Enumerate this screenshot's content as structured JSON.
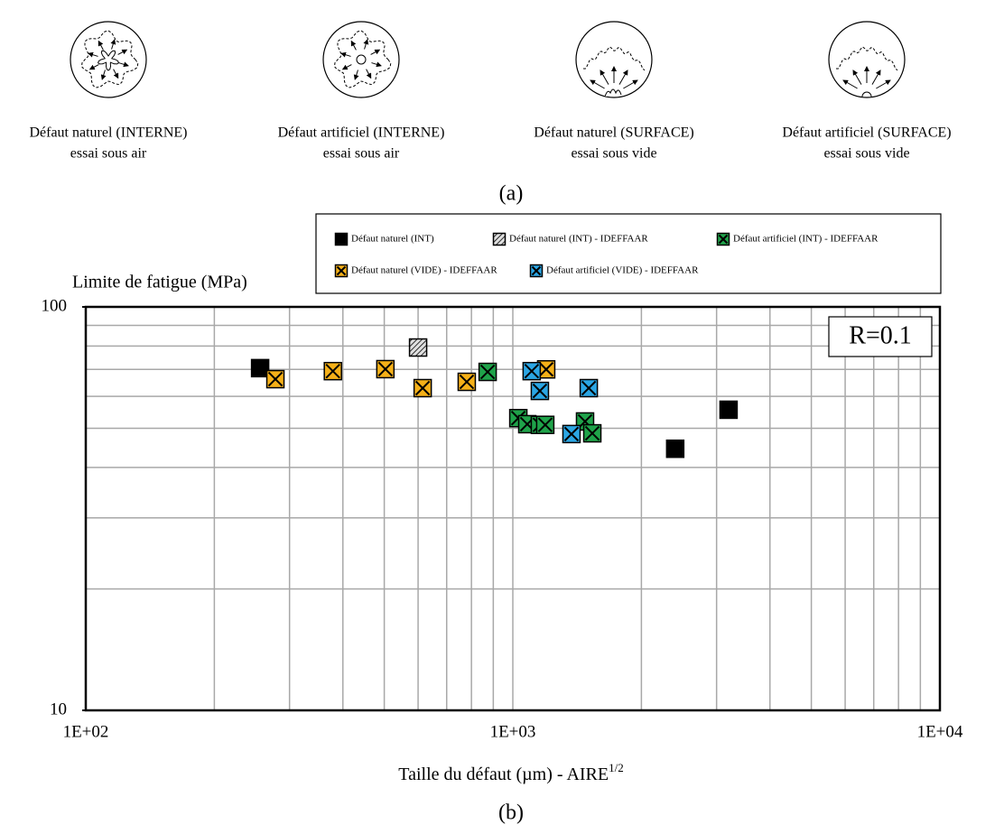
{
  "diagrams": [
    {
      "line1": "Défaut naturel (INTERNE)",
      "line2": "essai sous air"
    },
    {
      "line1": "Défaut artificiel (INTERNE)",
      "line2": "essai sous air"
    },
    {
      "line1": "Défaut naturel (SURFACE)",
      "line2": "essai sous vide"
    },
    {
      "line1": "Défaut artificiel (SURFACE)",
      "line2": "essai sous vide"
    }
  ],
  "panel_a_label": "(a)",
  "panel_b_label": "(b)",
  "chart_data": {
    "type": "scatter",
    "ylabel": "Limite de fatigue (MPa)",
    "xlabel": "Taille du défaut (µm) - AIRE",
    "xlabel_superscript": "1/2",
    "annotation": "R=0.1",
    "xscale": "log",
    "yscale": "log",
    "grid": true,
    "xlim": [
      100,
      10000
    ],
    "ylim": [
      10,
      100
    ],
    "xticks": [
      {
        "value": 100,
        "label": "1E+02"
      },
      {
        "value": 1000,
        "label": "1E+03"
      },
      {
        "value": 10000,
        "label": "1E+04"
      }
    ],
    "yticks": [
      10,
      100
    ],
    "minor_xticks": [
      200,
      300,
      400,
      500,
      600,
      700,
      800,
      900,
      2000,
      3000,
      4000,
      5000,
      6000,
      7000,
      8000,
      9000
    ],
    "minor_yticks": [
      20,
      30,
      40,
      50,
      60,
      70,
      80,
      90
    ],
    "series": [
      {
        "name": "Défaut naturel (INT)",
        "color": "#000000",
        "marker": "square",
        "x": [
          256,
          2400,
          3200
        ],
        "values": [
          70.5,
          44.5,
          55.6
        ]
      },
      {
        "name": "Défaut naturel (INT) - IDEFFAAR",
        "color": "#b0b0b0",
        "marker": "hatched",
        "x": [
          600
        ],
        "values": [
          79.3
        ]
      },
      {
        "name": "Défaut artificiel (INT) - IDEFFAAR",
        "color": "#1fa34a",
        "marker": "cross",
        "x": [
          873,
          1030,
          1081,
          1157,
          1191,
          1476,
          1535
        ],
        "values": [
          69,
          53,
          51.2,
          51,
          51,
          52,
          48.6
        ]
      },
      {
        "name": "Défaut naturel (VIDE) - IDEFFAAR",
        "color": "#f5b018",
        "marker": "cross",
        "x": [
          278,
          379,
          503,
          615,
          780,
          1197
        ],
        "values": [
          66.2,
          69.3,
          70.1,
          62.9,
          65.2,
          70
        ]
      },
      {
        "name": "Défaut artificiel (VIDE) - IDEFFAAR",
        "color": "#2ba6e4",
        "marker": "cross",
        "x": [
          1107,
          1157,
          1506,
          1372
        ],
        "values": [
          69.3,
          61.9,
          62.9,
          48.4
        ]
      }
    ]
  }
}
